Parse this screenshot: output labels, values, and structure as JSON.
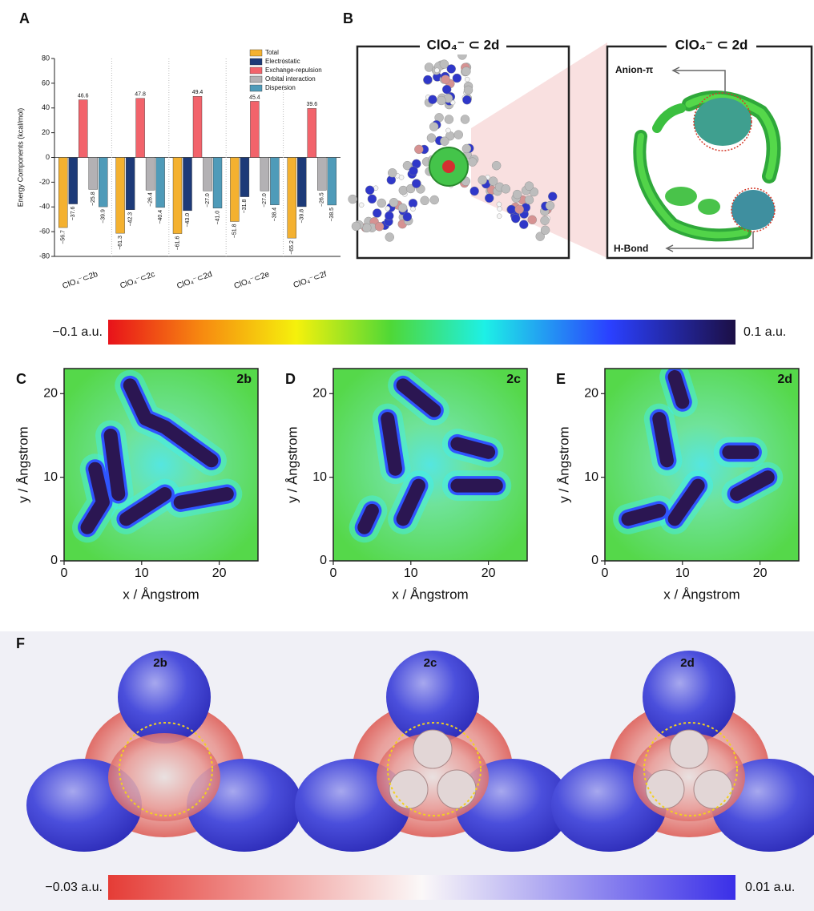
{
  "panel_labels": [
    "A",
    "B",
    "C",
    "D",
    "E",
    "F"
  ],
  "chart_data": [
    {
      "type": "bar",
      "y_label": "Energy Components (kcal/mol)",
      "categories": [
        "ClO₄⁻⊂2b",
        "ClO₄⁻⊂2c",
        "ClO₄⁻⊂2d",
        "ClO₄⁻⊂2e",
        "ClO₄⁻⊂2f"
      ],
      "series": [
        {
          "name": "Total",
          "color": "#f4b130",
          "values": [
            -56.7,
            -61.3,
            -61.6,
            -51.8,
            -65.2
          ],
          "value_labels": [
            "−56.7",
            "−61.3",
            "−61.6",
            "−51.8",
            "−65.2"
          ]
        },
        {
          "name": "Electrostatic",
          "color": "#1d3a78",
          "values": [
            -37.6,
            -42.3,
            -43.0,
            -31.8,
            -39.8
          ],
          "value_labels": [
            "−37.6",
            "−42.3",
            "−43.0",
            "−31.8",
            "−39.8"
          ]
        },
        {
          "name": "Exchange-repulsion",
          "color": "#f2636b",
          "values": [
            46.6,
            47.8,
            49.4,
            45.4,
            39.6
          ],
          "value_labels": [
            "46.6",
            "47.8",
            "49.4",
            "45.4",
            "39.6"
          ]
        },
        {
          "name": "Orbital interaction",
          "color": "#b3b1b4",
          "values": [
            -25.8,
            -26.4,
            -27.0,
            -27.0,
            -26.5
          ],
          "value_labels": [
            "−25.8",
            "−26.4",
            "−27.0",
            "−27.0",
            "−26.5"
          ]
        },
        {
          "name": "Dispersion",
          "color": "#4f9bb9",
          "values": [
            -39.9,
            -40.4,
            -41.0,
            -38.4,
            -38.5
          ],
          "value_labels": [
            "−39.9",
            "−40.4",
            "−41.0",
            "−38.4",
            "−38.5"
          ]
        }
      ],
      "ylim": [
        -80,
        80
      ],
      "yticks": [
        -80,
        -60,
        -40,
        -20,
        0,
        20,
        40,
        60,
        80
      ],
      "legend": "upper-right"
    },
    {
      "type": "map",
      "title": "2b",
      "x_label": "x / Ångstrom",
      "y_label": "y / Ångstrom",
      "xlim": [
        0,
        25
      ],
      "ylim": [
        0,
        23
      ],
      "xticks": [
        0,
        10,
        20
      ],
      "yticks": [
        0,
        10,
        20
      ]
    },
    {
      "type": "map",
      "title": "2c",
      "x_label": "x / Ångstrom",
      "y_label": "y / Ångstrom",
      "xlim": [
        0,
        25
      ],
      "ylim": [
        0,
        23
      ],
      "xticks": [
        0,
        10,
        20
      ],
      "yticks": [
        0,
        10,
        20
      ]
    },
    {
      "type": "map",
      "title": "2d",
      "x_label": "x / Ångstrom",
      "y_label": "y / Ångstrom",
      "xlim": [
        0,
        25
      ],
      "ylim": [
        0,
        23
      ],
      "xticks": [
        0,
        10,
        20
      ],
      "yticks": [
        0,
        10,
        20
      ]
    }
  ],
  "panel_b": {
    "left_title": "ClO₄⁻ ⊂ 2d",
    "right_title": "ClO₄⁻ ⊂ 2d",
    "anion_label": "Anion-π",
    "hbond_label": "H-Bond"
  },
  "colorbar_rdg": {
    "min_label": "−0.1 a.u.",
    "max_label": "0.1 a.u."
  },
  "panel_f": {
    "titles": [
      "2b",
      "2c",
      "2d"
    ],
    "colorbar": {
      "min_label": "−0.03 a.u.",
      "max_label": "0.01 a.u."
    }
  }
}
